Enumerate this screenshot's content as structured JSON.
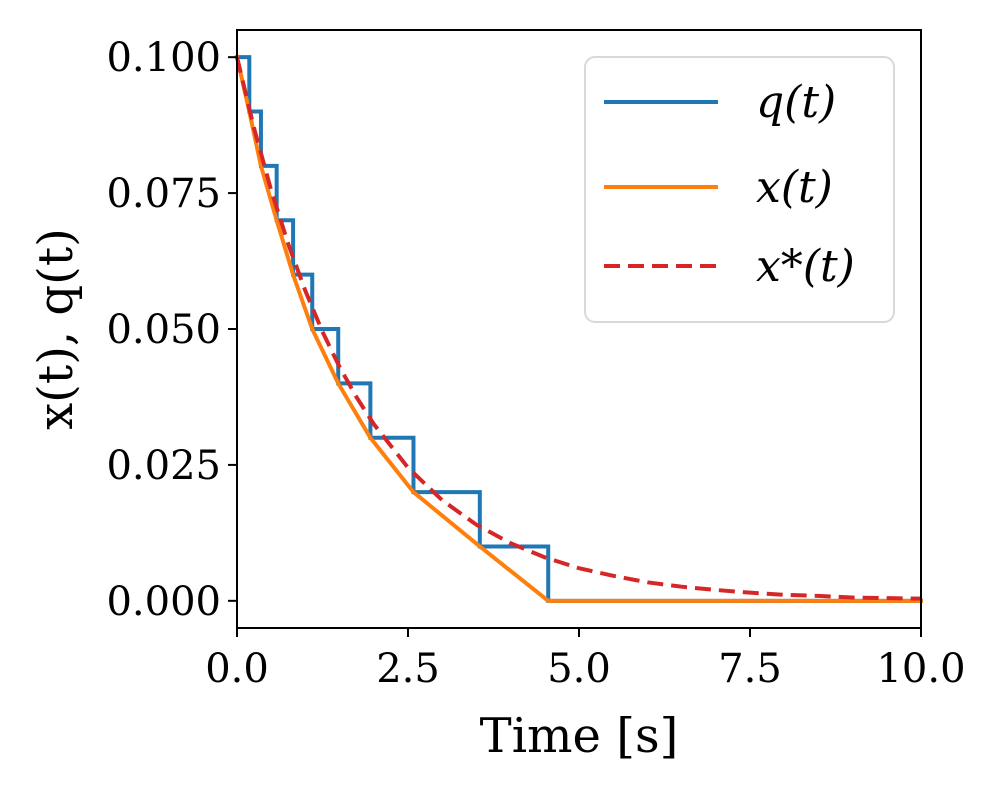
{
  "chart_data": {
    "type": "line",
    "title": "",
    "xlabel": "Time [s]",
    "ylabel": "x(t), q(t)",
    "xlim": [
      0,
      10
    ],
    "ylim": [
      -0.005,
      0.105
    ],
    "x_ticks": [
      0,
      2.5,
      5,
      7.5,
      10
    ],
    "x_tick_labels": [
      "0.0",
      "2.5",
      "5.0",
      "7.5",
      "10.0"
    ],
    "y_ticks": [
      0,
      0.025,
      0.05,
      0.075,
      0.1
    ],
    "y_tick_labels": [
      "0.000",
      "0.025",
      "0.050",
      "0.075",
      "0.100"
    ],
    "grid": false,
    "legend_position": "top-right",
    "series": [
      {
        "name": "q(t)",
        "label": "q(t)",
        "style": "step",
        "color": "#1f77b4",
        "dash": "solid",
        "x": [
          0,
          0.18,
          0.18,
          0.35,
          0.35,
          0.58,
          0.58,
          0.82,
          0.82,
          1.1,
          1.1,
          1.48,
          1.48,
          1.95,
          1.95,
          2.58,
          2.58,
          3.55,
          3.55,
          4.55,
          4.55,
          10
        ],
        "y": [
          0.1,
          0.1,
          0.09,
          0.09,
          0.08,
          0.08,
          0.07,
          0.07,
          0.06,
          0.06,
          0.05,
          0.05,
          0.04,
          0.04,
          0.03,
          0.03,
          0.02,
          0.02,
          0.01,
          0.01,
          0,
          0
        ]
      },
      {
        "name": "x(t)",
        "label": "x(t)",
        "style": "line",
        "color": "#ff7f0e",
        "dash": "solid",
        "x": [
          0,
          0.18,
          0.35,
          0.58,
          0.82,
          1.1,
          1.48,
          1.95,
          2.58,
          3.55,
          4.55,
          10
        ],
        "y": [
          0.1,
          0.09,
          0.08,
          0.07,
          0.06,
          0.05,
          0.04,
          0.03,
          0.02,
          0.01,
          0,
          0
        ]
      },
      {
        "name": "x*(t)",
        "label": "x*(t)",
        "style": "line",
        "color": "#d62728",
        "dash": "dashed",
        "x": [
          0,
          0.25,
          0.5,
          0.75,
          1,
          1.25,
          1.5,
          1.75,
          2,
          2.5,
          3,
          3.5,
          4,
          4.5,
          5,
          5.5,
          6,
          6.5,
          7,
          7.5,
          8,
          8.5,
          9,
          9.5,
          10
        ],
        "y": [
          0.1,
          0.0869,
          0.0755,
          0.0656,
          0.057,
          0.0495,
          0.043,
          0.0374,
          0.0325,
          0.0245,
          0.0185,
          0.014,
          0.0106,
          0.008,
          0.006,
          0.0046,
          0.0034,
          0.0026,
          0.002,
          0.0015,
          0.0011,
          0.0009,
          0.0006,
          0.0005,
          0.0004
        ]
      }
    ]
  }
}
